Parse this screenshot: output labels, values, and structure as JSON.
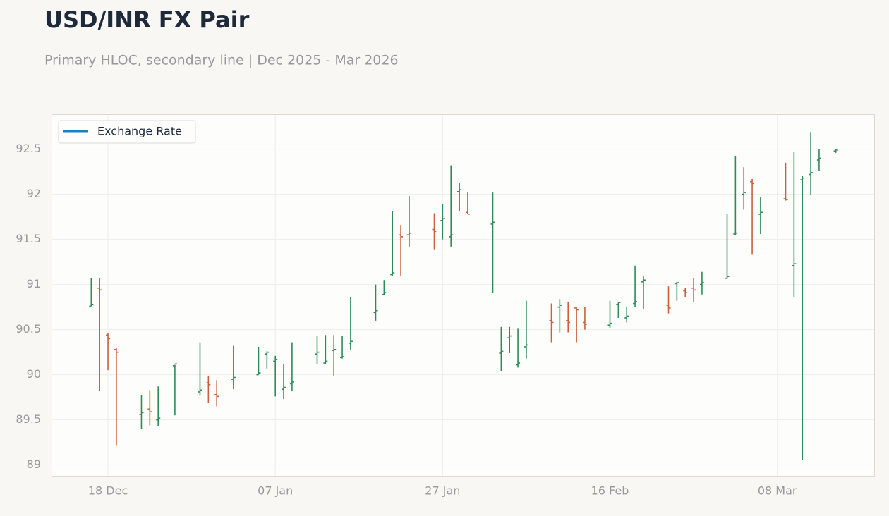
{
  "chart_data": {
    "type": "ohlc",
    "title": "USD/INR FX Pair",
    "subtitle": "Primary HLOC, secondary line | Dec 2025 - Mar 2026",
    "x": [
      "2025-12-16",
      "2025-12-17",
      "2025-12-18",
      "2025-12-19",
      "2025-12-22",
      "2025-12-23",
      "2025-12-24",
      "2025-12-26",
      "2025-12-29",
      "2025-12-30",
      "2025-12-31",
      "2026-01-02",
      "2026-01-05",
      "2026-01-06",
      "2026-01-07",
      "2026-01-08",
      "2026-01-09",
      "2026-01-12",
      "2026-01-13",
      "2026-01-14",
      "2026-01-15",
      "2026-01-16",
      "2026-01-19",
      "2026-01-20",
      "2026-01-21",
      "2026-01-22",
      "2026-01-23",
      "2026-01-26",
      "2026-01-27",
      "2026-01-28",
      "2026-01-29",
      "2026-01-30",
      "2026-02-02",
      "2026-02-03",
      "2026-02-04",
      "2026-02-05",
      "2026-02-06",
      "2026-02-09",
      "2026-02-10",
      "2026-02-11",
      "2026-02-12",
      "2026-02-13",
      "2026-02-16",
      "2026-02-17",
      "2026-02-18",
      "2026-02-19",
      "2026-02-20",
      "2026-02-23",
      "2026-02-24",
      "2026-02-25",
      "2026-02-26",
      "2026-02-27",
      "2026-03-02",
      "2026-03-03",
      "2026-03-04",
      "2026-03-05",
      "2026-03-06",
      "2026-03-09",
      "2026-03-10",
      "2026-03-11",
      "2026-03-12",
      "2026-03-13",
      "2026-03-15"
    ],
    "open": [
      90.76,
      90.96,
      90.44,
      90.28,
      89.56,
      89.62,
      89.5,
      90.1,
      89.81,
      89.91,
      89.78,
      89.95,
      90.0,
      90.23,
      90.15,
      89.84,
      89.9,
      90.23,
      90.13,
      90.27,
      90.19,
      90.35,
      90.69,
      90.89,
      91.11,
      91.55,
      91.55,
      91.61,
      91.71,
      91.53,
      92.03,
      91.8,
      91.67,
      90.24,
      90.41,
      90.11,
      90.31,
      90.6,
      90.75,
      90.6,
      90.74,
      90.58,
      90.55,
      90.78,
      90.63,
      90.79,
      91.03,
      90.77,
      91.01,
      90.93,
      90.96,
      91.0,
      91.07,
      91.56,
      92.0,
      92.14,
      91.78,
      91.95,
      91.21,
      92.16,
      92.22,
      92.38,
      92.48
    ],
    "high": [
      91.07,
      91.07,
      90.46,
      90.3,
      89.77,
      89.83,
      89.87,
      90.11,
      90.36,
      89.99,
      89.94,
      90.32,
      90.31,
      90.26,
      90.21,
      90.12,
      90.36,
      90.43,
      90.44,
      90.44,
      90.43,
      90.86,
      91.0,
      91.05,
      91.81,
      91.66,
      91.98,
      91.79,
      91.89,
      92.32,
      92.13,
      92.02,
      92.02,
      90.53,
      90.53,
      90.51,
      90.82,
      90.79,
      90.84,
      90.81,
      90.75,
      90.75,
      90.82,
      90.8,
      90.75,
      91.21,
      91.09,
      90.98,
      91.03,
      90.96,
      91.07,
      91.14,
      91.78,
      92.42,
      92.3,
      92.17,
      91.97,
      92.35,
      92.47,
      92.2,
      92.69,
      92.5,
      92.5
    ],
    "low": [
      90.76,
      89.82,
      90.05,
      89.22,
      89.4,
      89.44,
      89.43,
      89.55,
      89.77,
      89.69,
      89.65,
      89.84,
      90.0,
      90.07,
      89.76,
      89.73,
      89.82,
      90.12,
      90.12,
      89.99,
      90.18,
      90.28,
      90.6,
      90.88,
      91.1,
      91.1,
      91.42,
      91.39,
      91.5,
      91.42,
      91.81,
      91.78,
      90.91,
      90.04,
      90.24,
      90.08,
      90.18,
      90.36,
      90.47,
      90.47,
      90.36,
      90.5,
      90.52,
      90.63,
      90.58,
      90.75,
      90.73,
      90.68,
      90.82,
      90.86,
      90.81,
      90.89,
      91.06,
      91.55,
      91.83,
      91.33,
      91.56,
      91.93,
      90.86,
      89.06,
      91.99,
      92.26,
      92.46
    ],
    "close": [
      90.78,
      90.94,
      90.4,
      90.25,
      89.58,
      89.59,
      89.52,
      90.12,
      89.83,
      89.89,
      89.76,
      89.97,
      90.02,
      90.25,
      90.17,
      89.86,
      89.92,
      90.25,
      90.15,
      90.28,
      90.2,
      90.37,
      90.71,
      90.91,
      91.13,
      91.53,
      91.57,
      91.59,
      91.73,
      91.55,
      92.05,
      91.78,
      91.69,
      90.26,
      90.43,
      90.13,
      90.33,
      90.58,
      90.77,
      90.58,
      90.72,
      90.56,
      90.57,
      90.8,
      90.65,
      90.81,
      91.05,
      90.74,
      91.02,
      90.91,
      90.94,
      91.02,
      91.09,
      91.57,
      92.02,
      92.12,
      91.8,
      91.94,
      91.23,
      92.18,
      92.24,
      92.4,
      92.49
    ],
    "up_color": "#2e8b57",
    "down_color": "#c8603e",
    "line_series": {
      "name": "Exchange Rate",
      "color": "#1580c4"
    },
    "xlim": [
      "2025-12-11T08:00:00Z",
      "2026-03-19T14:00:00Z"
    ],
    "xticks": [
      {
        "value": "2025-12-18",
        "label": "18 Dec"
      },
      {
        "value": "2026-01-07",
        "label": "07 Jan"
      },
      {
        "value": "2026-01-27",
        "label": "27 Jan"
      },
      {
        "value": "2026-02-16",
        "label": "16 Feb"
      },
      {
        "value": "2026-03-08",
        "label": "08 Mar"
      }
    ],
    "ylim": [
      88.88,
      92.88
    ],
    "yticks": [
      89,
      89.5,
      90,
      90.5,
      91,
      91.5,
      92,
      92.5
    ],
    "grid": true,
    "legend": "upper left"
  }
}
